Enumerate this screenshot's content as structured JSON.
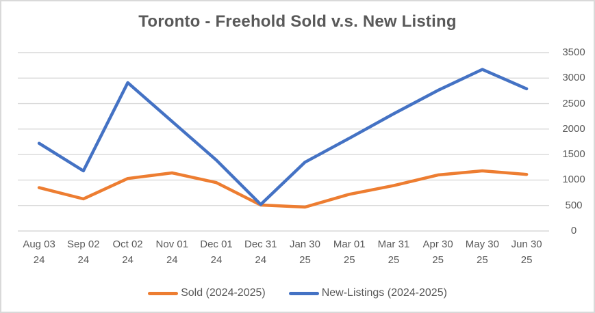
{
  "window": {
    "background": "#FFFFFF",
    "border_color": "#D9D9D9"
  },
  "chart_data": {
    "type": "line",
    "title": "Toronto - Freehold Sold v.s. New Listing",
    "categories": [
      "Aug 03 24",
      "Sep 02 24",
      "Oct 02 24",
      "Nov 01 24",
      "Dec 01 24",
      "Dec 31 24",
      "Jan 30 25",
      "Mar 01 25",
      "Mar 31 25",
      "Apr 30 25",
      "May 30 25",
      "Jun 30 25"
    ],
    "category_labels": [
      {
        "date": "Aug 03",
        "year": "24"
      },
      {
        "date": "Sep 02",
        "year": "24"
      },
      {
        "date": "Oct 02",
        "year": "24"
      },
      {
        "date": "Nov 01",
        "year": "24"
      },
      {
        "date": "Dec 01",
        "year": "24"
      },
      {
        "date": "Dec 31",
        "year": "24"
      },
      {
        "date": "Jan 30",
        "year": "25"
      },
      {
        "date": "Mar 01",
        "year": "25"
      },
      {
        "date": "Mar 31",
        "year": "25"
      },
      {
        "date": "Apr 30",
        "year": "25"
      },
      {
        "date": "May 30",
        "year": "25"
      },
      {
        "date": "Jun 30",
        "year": "25"
      }
    ],
    "series": [
      {
        "name": "Sold (2024-2025)",
        "color": "#ED7D31",
        "values": [
          850,
          630,
          1030,
          1140,
          950,
          510,
          470,
          720,
          890,
          1100,
          1180,
          1110
        ]
      },
      {
        "name": "New-Listings (2024-2025)",
        "color": "#4472C4",
        "values": [
          1720,
          1180,
          2910,
          2150,
          1390,
          520,
          1350,
          1820,
          2300,
          2760,
          3170,
          2790
        ]
      }
    ],
    "y_axis": {
      "side": "right",
      "min": 0,
      "max": 3500,
      "step": 500,
      "tick_labels": [
        "0",
        "500",
        "1000",
        "1500",
        "2000",
        "2500",
        "3000",
        "3500"
      ]
    },
    "grid": true,
    "legend_position": "bottom",
    "text_color": "#595959",
    "gridline_color": "#D9D9D9"
  }
}
